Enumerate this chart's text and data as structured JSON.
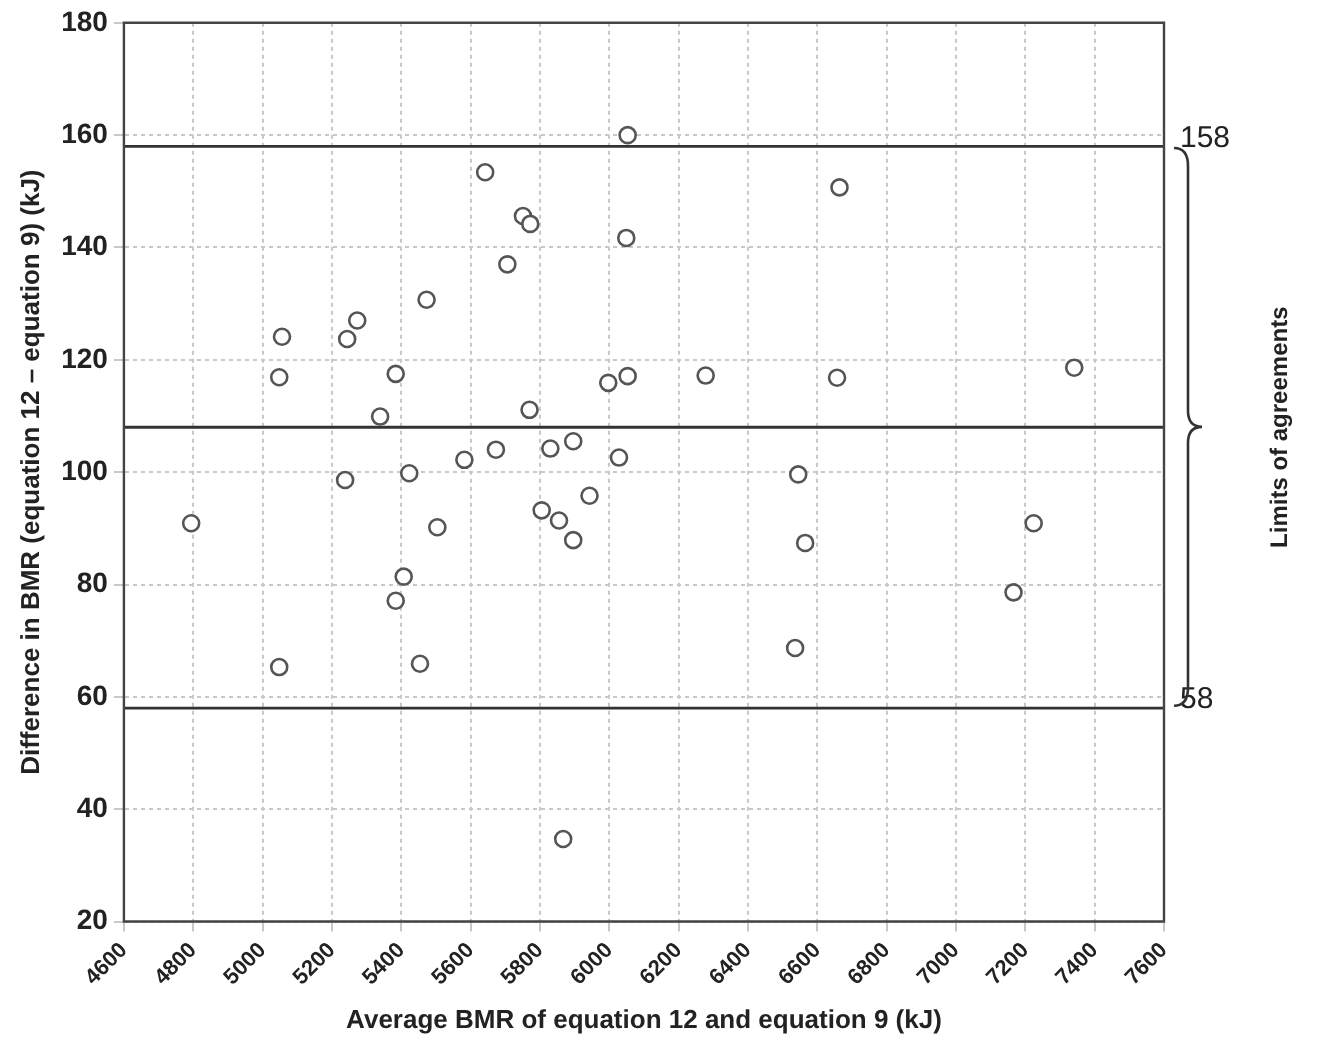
{
  "chart_data": {
    "type": "scatter",
    "xlabel": "Average BMR of equation 12 and equation 9 (kJ)",
    "ylabel": "Difference in BMR (equation 12 – equation 9) (kJ)",
    "xlim": [
      4600,
      7600
    ],
    "xticks": [
      4600,
      4800,
      5000,
      5200,
      5400,
      5600,
      5800,
      6000,
      6200,
      6400,
      6600,
      6800,
      7000,
      7200,
      7400,
      7600
    ],
    "ylim": [
      20,
      180
    ],
    "yticks": [
      20,
      40,
      60,
      80,
      100,
      120,
      140,
      160,
      180
    ],
    "grid": true,
    "legend": false,
    "marker": "circle",
    "series": [
      {
        "color": "#555555",
        "x": [
          6053,
          5642,
          5751,
          5772,
          6049,
          5706,
          5473,
          5056,
          5273,
          5244,
          5048,
          5384,
          5997,
          6053,
          5339,
          5770,
          5896,
          5830,
          5673,
          5582,
          6028,
          5238,
          5423,
          5943,
          4794,
          5504,
          5805,
          5855,
          5896,
          5407,
          5384,
          5048,
          5454,
          5867,
          6664,
          6278,
          6657,
          7341,
          6545,
          6565,
          6536,
          7166,
          7224
        ],
        "values": [
          160,
          153.4,
          145.6,
          144.2,
          141.7,
          137,
          130.7,
          124.1,
          127,
          123.7,
          116.9,
          117.5,
          115.9,
          117.1,
          109.9,
          111.1,
          105.5,
          104.2,
          104,
          102.2,
          102.6,
          98.6,
          99.8,
          95.8,
          90.9,
          90.2,
          93.2,
          91.4,
          87.9,
          81.4,
          77.1,
          65.3,
          65.9,
          34.7,
          150.7,
          117.2,
          116.8,
          118.6,
          99.6,
          87.4,
          68.7,
          78.6,
          90.9
        ]
      }
    ],
    "ref_lines": [
      {
        "axis": "y",
        "value": 158,
        "label": "158"
      },
      {
        "axis": "y",
        "value": 108,
        "label": null
      },
      {
        "axis": "y",
        "value": 58,
        "label": "58"
      }
    ],
    "annotations": [
      "Limits of agreements"
    ]
  }
}
